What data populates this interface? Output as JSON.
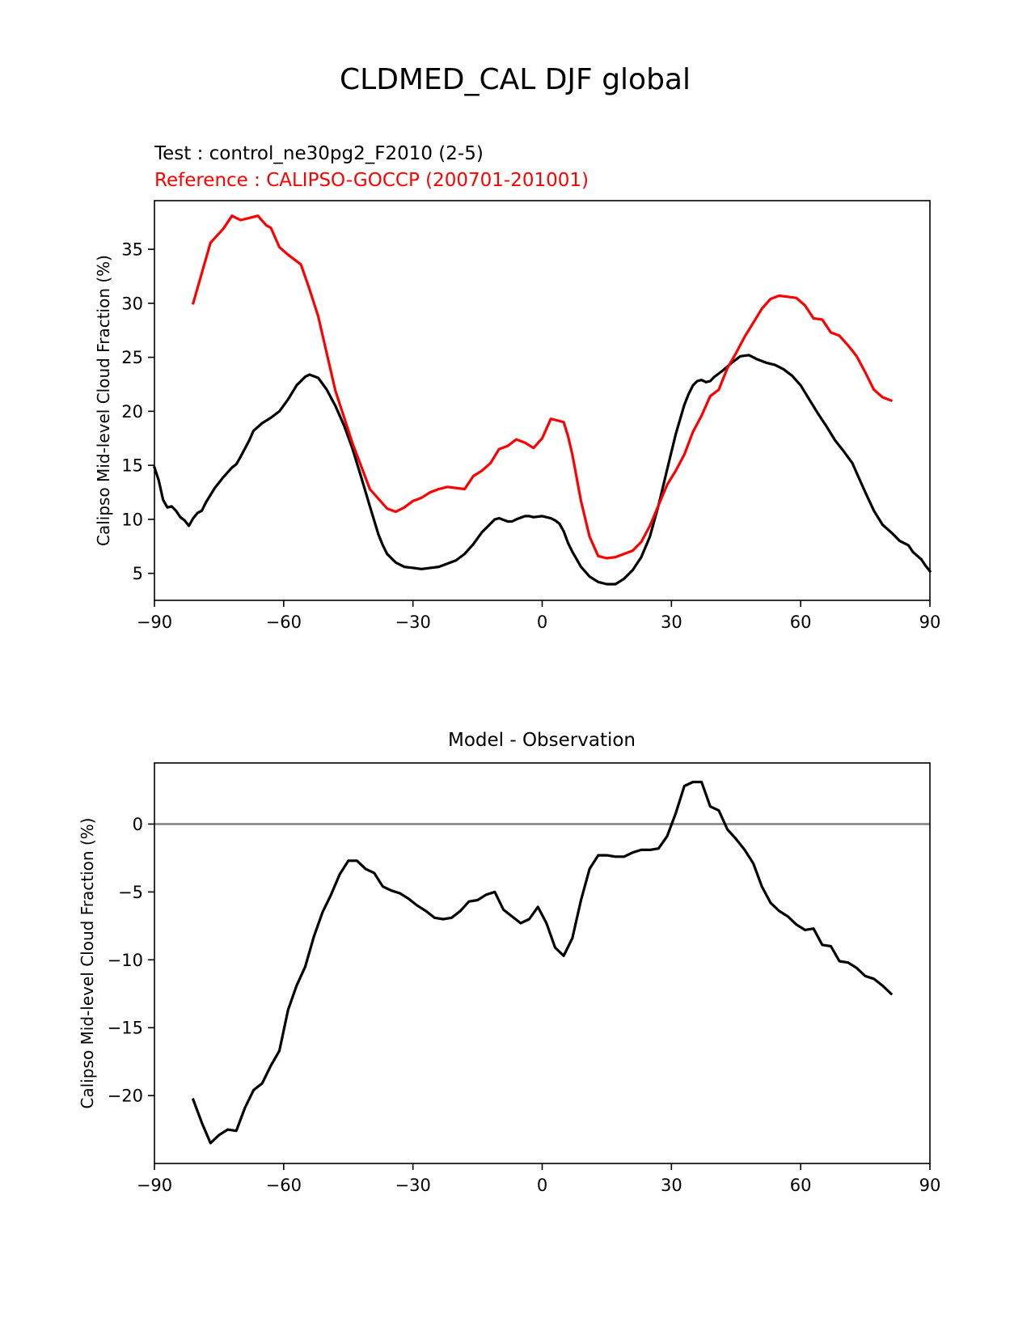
{
  "suptitle": "CLDMED_CAL DJF global",
  "colors": {
    "test": "#000000",
    "reference": "#ff0000",
    "zero_line": "#808080"
  },
  "chart_data": [
    {
      "type": "line",
      "title_test": "Test : control_ne30pg2_F2010 (2-5)",
      "title_reference": "Reference : CALIPSO-GOCCP (200701-201001)",
      "xlabel": "",
      "ylabel": "Calipso Mid-level Cloud Fraction (%)",
      "xlim": [
        -90,
        90
      ],
      "ylim": [
        2.5,
        39.5
      ],
      "xticks": [
        -90,
        -60,
        -30,
        0,
        30,
        60,
        90
      ],
      "xtick_labels": [
        "−90",
        "−60",
        "−30",
        "0",
        "30",
        "60",
        "90"
      ],
      "yticks": [
        5,
        10,
        15,
        20,
        25,
        30,
        35
      ],
      "ytick_labels": [
        "5",
        "10",
        "15",
        "20",
        "25",
        "30",
        "35"
      ],
      "grid": false,
      "series": [
        {
          "color": "#000000",
          "x": [
            -90,
            -89,
            -88,
            -87,
            -86,
            -85,
            -84,
            -83,
            -82,
            -81,
            -80,
            -79,
            -78,
            -76,
            -74,
            -72,
            -71,
            -70,
            -68,
            -67,
            -65,
            -63,
            -61,
            -59,
            -57,
            -56,
            -55,
            -54,
            -52,
            -50,
            -48,
            -46,
            -44,
            -42,
            -40,
            -38,
            -37,
            -36,
            -34,
            -32,
            -30,
            -28,
            -26,
            -24,
            -22,
            -20,
            -18,
            -16,
            -14,
            -12,
            -11,
            -10,
            -8,
            -7,
            -6,
            -4,
            -3,
            -2,
            0,
            2,
            3,
            4,
            5,
            6,
            7,
            9,
            11,
            13,
            15,
            17,
            19,
            21,
            23,
            25,
            27,
            29,
            31,
            33,
            34,
            35,
            36,
            37,
            38,
            39,
            40,
            42,
            44,
            46,
            48,
            50,
            52,
            54,
            56,
            58,
            60,
            62,
            64,
            66,
            68,
            70,
            72,
            73,
            75,
            77,
            79,
            81,
            82,
            83,
            85,
            86,
            88,
            89,
            90
          ],
          "values": [
            14.8,
            13.6,
            11.8,
            11.1,
            11.2,
            10.8,
            10.2,
            9.9,
            9.4,
            10.1,
            10.6,
            10.8,
            11.6,
            12.9,
            13.9,
            14.8,
            15.1,
            15.8,
            17.3,
            18.2,
            18.9,
            19.4,
            20.0,
            21.1,
            22.4,
            22.8,
            23.2,
            23.4,
            23.1,
            22.0,
            20.5,
            18.7,
            16.5,
            13.9,
            11.2,
            8.6,
            7.6,
            6.8,
            6.0,
            5.6,
            5.5,
            5.4,
            5.5,
            5.6,
            5.9,
            6.2,
            6.8,
            7.7,
            8.8,
            9.6,
            10.0,
            10.1,
            9.8,
            9.8,
            10.0,
            10.3,
            10.3,
            10.2,
            10.3,
            10.1,
            9.9,
            9.6,
            8.9,
            7.8,
            7.0,
            5.6,
            4.7,
            4.2,
            4.0,
            4.0,
            4.5,
            5.3,
            6.5,
            8.4,
            11.3,
            14.6,
            17.9,
            20.6,
            21.6,
            22.4,
            22.8,
            22.9,
            22.7,
            22.8,
            23.2,
            23.8,
            24.5,
            25.1,
            25.2,
            24.8,
            24.5,
            24.3,
            23.9,
            23.3,
            22.4,
            21.1,
            19.8,
            18.6,
            17.3,
            16.3,
            15.2,
            14.3,
            12.5,
            10.8,
            9.5,
            8.8,
            8.4,
            8.0,
            7.6,
            7.0,
            6.3,
            5.7,
            5.2
          ]
        },
        {
          "color": "#ff0000",
          "x": [
            -81,
            -77,
            -74,
            -72,
            -71,
            -70,
            -68,
            -66,
            -64,
            -63,
            -61,
            -59,
            -56,
            -54,
            -52,
            -48,
            -44,
            -40,
            -36,
            -34,
            -32,
            -30,
            -28,
            -26,
            -24,
            -22,
            -20,
            -18,
            -16,
            -14,
            -12,
            -10,
            -8,
            -6,
            -4,
            -2,
            0,
            2,
            3,
            5,
            6,
            7,
            9,
            11,
            13,
            15,
            17,
            19,
            21,
            23,
            25,
            27,
            29,
            31,
            33,
            35,
            37,
            39,
            41,
            43,
            45,
            47,
            49,
            51,
            53,
            55,
            57,
            59,
            61,
            63,
            65,
            67,
            69,
            71,
            73,
            75,
            77,
            79,
            81
          ],
          "values": [
            30.0,
            35.6,
            36.9,
            38.1,
            37.9,
            37.7,
            37.9,
            38.1,
            37.2,
            37.0,
            35.2,
            34.5,
            33.6,
            31.3,
            28.8,
            21.9,
            17.0,
            12.8,
            11.0,
            10.7,
            11.1,
            11.7,
            12.0,
            12.5,
            12.8,
            13.0,
            12.9,
            12.8,
            14.0,
            14.5,
            15.2,
            16.5,
            16.8,
            17.4,
            17.1,
            16.6,
            17.5,
            19.3,
            19.2,
            19.0,
            17.7,
            16.0,
            11.7,
            8.4,
            6.6,
            6.4,
            6.5,
            6.8,
            7.1,
            7.9,
            9.4,
            11.3,
            13.2,
            14.5,
            16.0,
            18.1,
            19.6,
            21.4,
            22.0,
            24.0,
            25.4,
            26.9,
            28.2,
            29.5,
            30.4,
            30.7,
            30.6,
            30.5,
            29.8,
            28.6,
            28.5,
            27.3,
            27.0,
            26.1,
            25.1,
            23.6,
            22.0,
            21.3,
            21.0
          ]
        }
      ]
    },
    {
      "type": "line",
      "title": "Model - Observation",
      "xlabel": "",
      "ylabel": "Calipso Mid-level Cloud Fraction (%)",
      "xlim": [
        -90,
        90
      ],
      "ylim": [
        -25,
        4.5
      ],
      "xticks": [
        -90,
        -60,
        -30,
        0,
        30,
        60,
        90
      ],
      "xtick_labels": [
        "−90",
        "−60",
        "−30",
        "0",
        "30",
        "60",
        "90"
      ],
      "yticks": [
        0,
        -5,
        -10,
        -15,
        -20
      ],
      "ytick_labels": [
        "0",
        "−5",
        "−10",
        "−15",
        "−20"
      ],
      "reference_line_y": 0,
      "grid": false,
      "series": [
        {
          "color": "#000000",
          "x": [
            -81,
            -79,
            -77,
            -75,
            -73,
            -71,
            -69,
            -67,
            -65,
            -63,
            -61,
            -59,
            -57,
            -55,
            -53,
            -51,
            -49,
            -47,
            -45,
            -43,
            -41,
            -39,
            -37,
            -35,
            -33,
            -31,
            -29,
            -27,
            -25,
            -23,
            -21,
            -19,
            -17,
            -15,
            -13,
            -11,
            -9,
            -7,
            -5,
            -3,
            -1,
            1,
            3,
            5,
            7,
            9,
            11,
            13,
            15,
            17,
            19,
            21,
            23,
            25,
            27,
            29,
            31,
            33,
            35,
            37,
            39,
            41,
            43,
            45,
            47,
            49,
            51,
            53,
            55,
            57,
            59,
            61,
            63,
            65,
            67,
            69,
            71,
            73,
            75,
            77,
            79,
            81
          ],
          "values": [
            -20.3,
            -22.0,
            -23.5,
            -22.9,
            -22.5,
            -22.6,
            -20.9,
            -19.6,
            -19.1,
            -17.8,
            -16.7,
            -13.7,
            -11.9,
            -10.5,
            -8.3,
            -6.5,
            -5.2,
            -3.7,
            -2.7,
            -2.7,
            -3.3,
            -3.6,
            -4.6,
            -4.9,
            -5.1,
            -5.5,
            -6.0,
            -6.4,
            -6.9,
            -7.0,
            -6.9,
            -6.4,
            -5.7,
            -5.6,
            -5.2,
            -5.0,
            -6.3,
            -6.8,
            -7.3,
            -7.0,
            -6.1,
            -7.3,
            -9.1,
            -9.7,
            -8.4,
            -5.6,
            -3.3,
            -2.3,
            -2.3,
            -2.4,
            -2.4,
            -2.1,
            -1.9,
            -1.9,
            -1.8,
            -0.9,
            0.8,
            2.8,
            3.1,
            3.1,
            1.3,
            1.0,
            -0.4,
            -1.1,
            -1.9,
            -2.9,
            -4.6,
            -5.8,
            -6.4,
            -6.8,
            -7.4,
            -7.8,
            -7.7,
            -8.9,
            -9.0,
            -10.1,
            -10.2,
            -10.6,
            -11.2,
            -11.4,
            -11.9,
            -12.5
          ]
        }
      ]
    }
  ]
}
